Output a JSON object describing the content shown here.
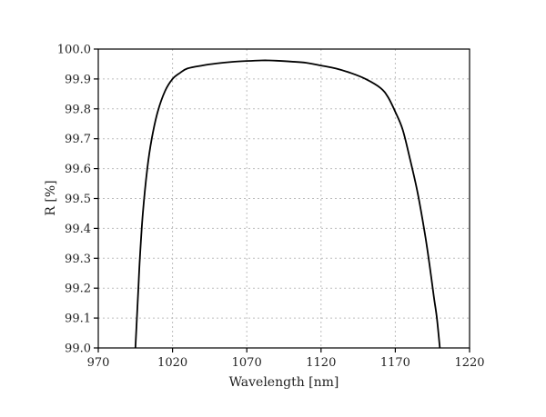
{
  "chart_data": {
    "type": "line",
    "title": "",
    "xlabel": "Wavelength [nm]",
    "ylabel": "R [%]",
    "xlim": [
      970,
      1220
    ],
    "ylim": [
      99.0,
      100.0
    ],
    "grid": true,
    "x_ticks": [
      "970",
      "1020",
      "1070",
      "1120",
      "1170",
      "1220"
    ],
    "y_ticks": [
      "99.0",
      "99.1",
      "99.2",
      "99.3",
      "99.4",
      "99.5",
      "99.6",
      "99.7",
      "99.8",
      "99.9",
      "100.0"
    ],
    "series": [
      {
        "color": "#000000",
        "x": [
          995,
          996,
          997,
          998,
          1000,
          1003,
          1006,
          1010,
          1015,
          1020,
          1025,
          1030,
          1040,
          1050,
          1060,
          1070,
          1080,
          1085,
          1090,
          1100,
          1110,
          1120,
          1130,
          1140,
          1150,
          1160,
          1165,
          1170,
          1175,
          1180,
          1185,
          1190,
          1193,
          1196,
          1198,
          1200
        ],
        "y": [
          99.0,
          99.1,
          99.2,
          99.3,
          99.45,
          99.6,
          99.7,
          99.79,
          99.86,
          99.9,
          99.92,
          99.935,
          99.945,
          99.952,
          99.957,
          99.96,
          99.962,
          99.962,
          99.961,
          99.958,
          99.954,
          99.945,
          99.935,
          99.92,
          99.9,
          99.87,
          99.84,
          99.79,
          99.73,
          99.63,
          99.52,
          99.38,
          99.28,
          99.17,
          99.1,
          99.0
        ]
      }
    ]
  }
}
